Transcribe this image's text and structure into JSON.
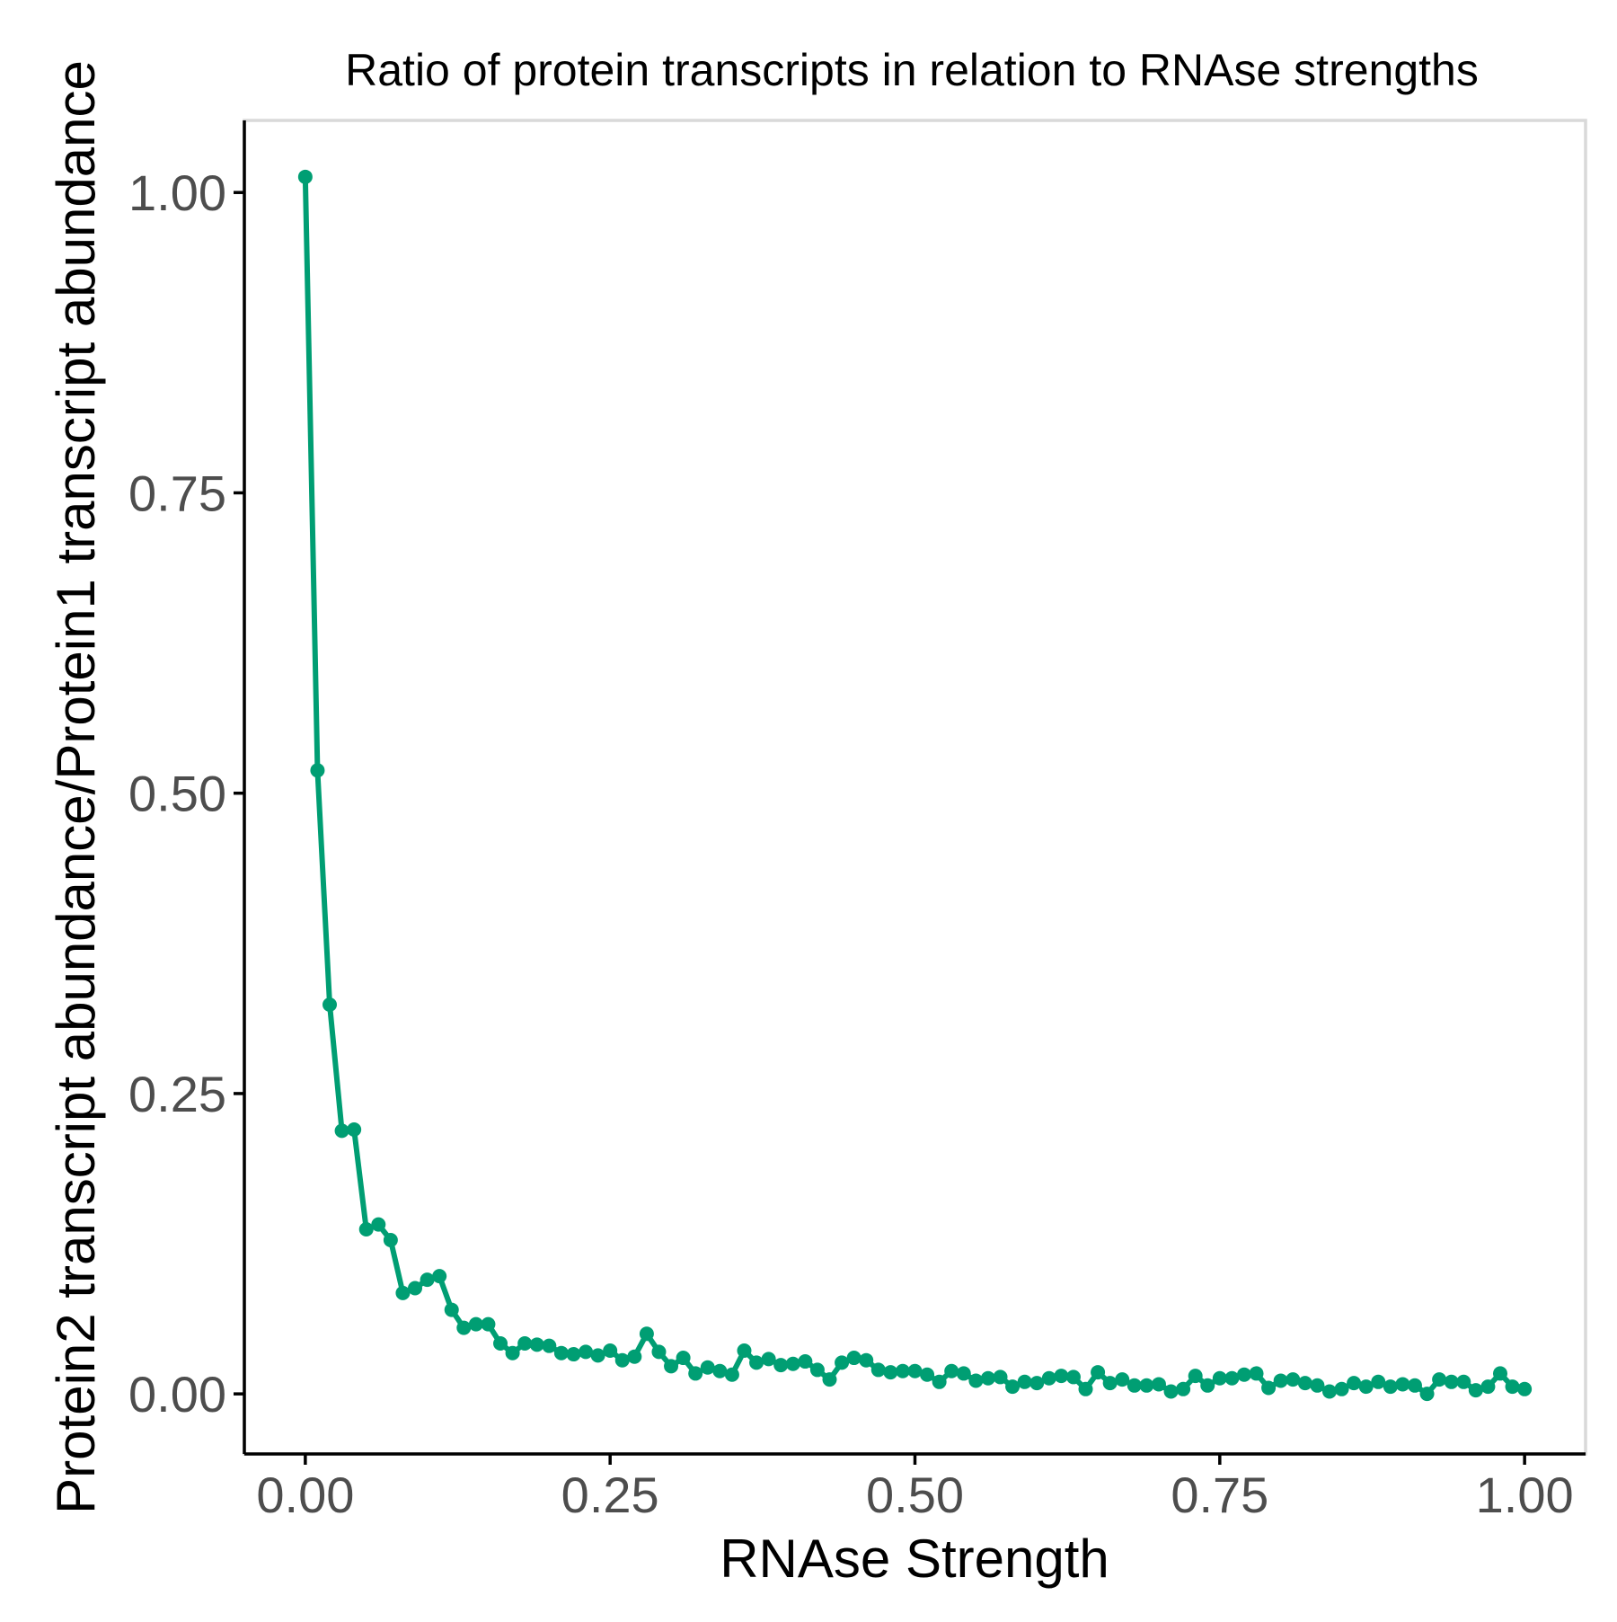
{
  "chart_data": {
    "type": "line",
    "title": "Ratio of protein transcripts in relation to RNAse strengths",
    "xlabel": "RNAse Strength",
    "ylabel": "Protein2 transcript abundance/Protein1 transcript abundance",
    "xlim": [
      -0.05,
      1.05
    ],
    "ylim": [
      -0.05,
      1.06
    ],
    "xticks": [
      0,
      0.25,
      0.5,
      0.75,
      1
    ],
    "xtick_labels": [
      "0.00",
      "0.25",
      "0.50",
      "0.75",
      "1.00"
    ],
    "yticks": [
      0,
      0.25,
      0.5,
      0.75,
      1
    ],
    "ytick_labels": [
      "0.00",
      "0.25",
      "0.50",
      "0.75",
      "1.00"
    ],
    "grid": false,
    "legend": false,
    "series": [
      {
        "color": "#009e73",
        "markers": true,
        "x": [
          0.0,
          0.01,
          0.02,
          0.03,
          0.04,
          0.05,
          0.06,
          0.07,
          0.08,
          0.09,
          0.1,
          0.11,
          0.12,
          0.13,
          0.14,
          0.15,
          0.16,
          0.17,
          0.18,
          0.19,
          0.2,
          0.21,
          0.22,
          0.23,
          0.24,
          0.25,
          0.26,
          0.27,
          0.28,
          0.29,
          0.3,
          0.31,
          0.32,
          0.33,
          0.34,
          0.35,
          0.36,
          0.37,
          0.38,
          0.39,
          0.4,
          0.41,
          0.42,
          0.43,
          0.44,
          0.45,
          0.46,
          0.47,
          0.48,
          0.49,
          0.5,
          0.51,
          0.52,
          0.53,
          0.54,
          0.55,
          0.56,
          0.57,
          0.58,
          0.59,
          0.6,
          0.61,
          0.62,
          0.63,
          0.64,
          0.65,
          0.66,
          0.67,
          0.68,
          0.69,
          0.7,
          0.71,
          0.72,
          0.73,
          0.74,
          0.75,
          0.76,
          0.77,
          0.78,
          0.79,
          0.8,
          0.81,
          0.82,
          0.83,
          0.84,
          0.85,
          0.86,
          0.87,
          0.88,
          0.89,
          0.9,
          0.91,
          0.92,
          0.93,
          0.94,
          0.95,
          0.96,
          0.97,
          0.98,
          0.99,
          1.0
        ],
        "y": [
          1.013,
          0.519,
          0.324,
          0.219,
          0.22,
          0.137,
          0.141,
          0.128,
          0.084,
          0.088,
          0.095,
          0.098,
          0.07,
          0.055,
          0.058,
          0.058,
          0.042,
          0.034,
          0.042,
          0.041,
          0.04,
          0.034,
          0.033,
          0.035,
          0.032,
          0.036,
          0.028,
          0.031,
          0.05,
          0.035,
          0.023,
          0.03,
          0.017,
          0.022,
          0.019,
          0.016,
          0.036,
          0.026,
          0.029,
          0.024,
          0.025,
          0.027,
          0.02,
          0.012,
          0.026,
          0.03,
          0.028,
          0.02,
          0.018,
          0.019,
          0.019,
          0.016,
          0.01,
          0.019,
          0.017,
          0.011,
          0.013,
          0.014,
          0.006,
          0.01,
          0.009,
          0.013,
          0.015,
          0.014,
          0.004,
          0.018,
          0.009,
          0.012,
          0.007,
          0.007,
          0.008,
          0.002,
          0.004,
          0.015,
          0.007,
          0.013,
          0.013,
          0.016,
          0.017,
          0.005,
          0.011,
          0.012,
          0.009,
          0.007,
          0.002,
          0.004,
          0.009,
          0.006,
          0.01,
          0.006,
          0.008,
          0.007,
          0.0,
          0.012,
          0.01,
          0.01,
          0.003,
          0.006,
          0.017,
          0.006,
          0.004
        ]
      }
    ]
  }
}
